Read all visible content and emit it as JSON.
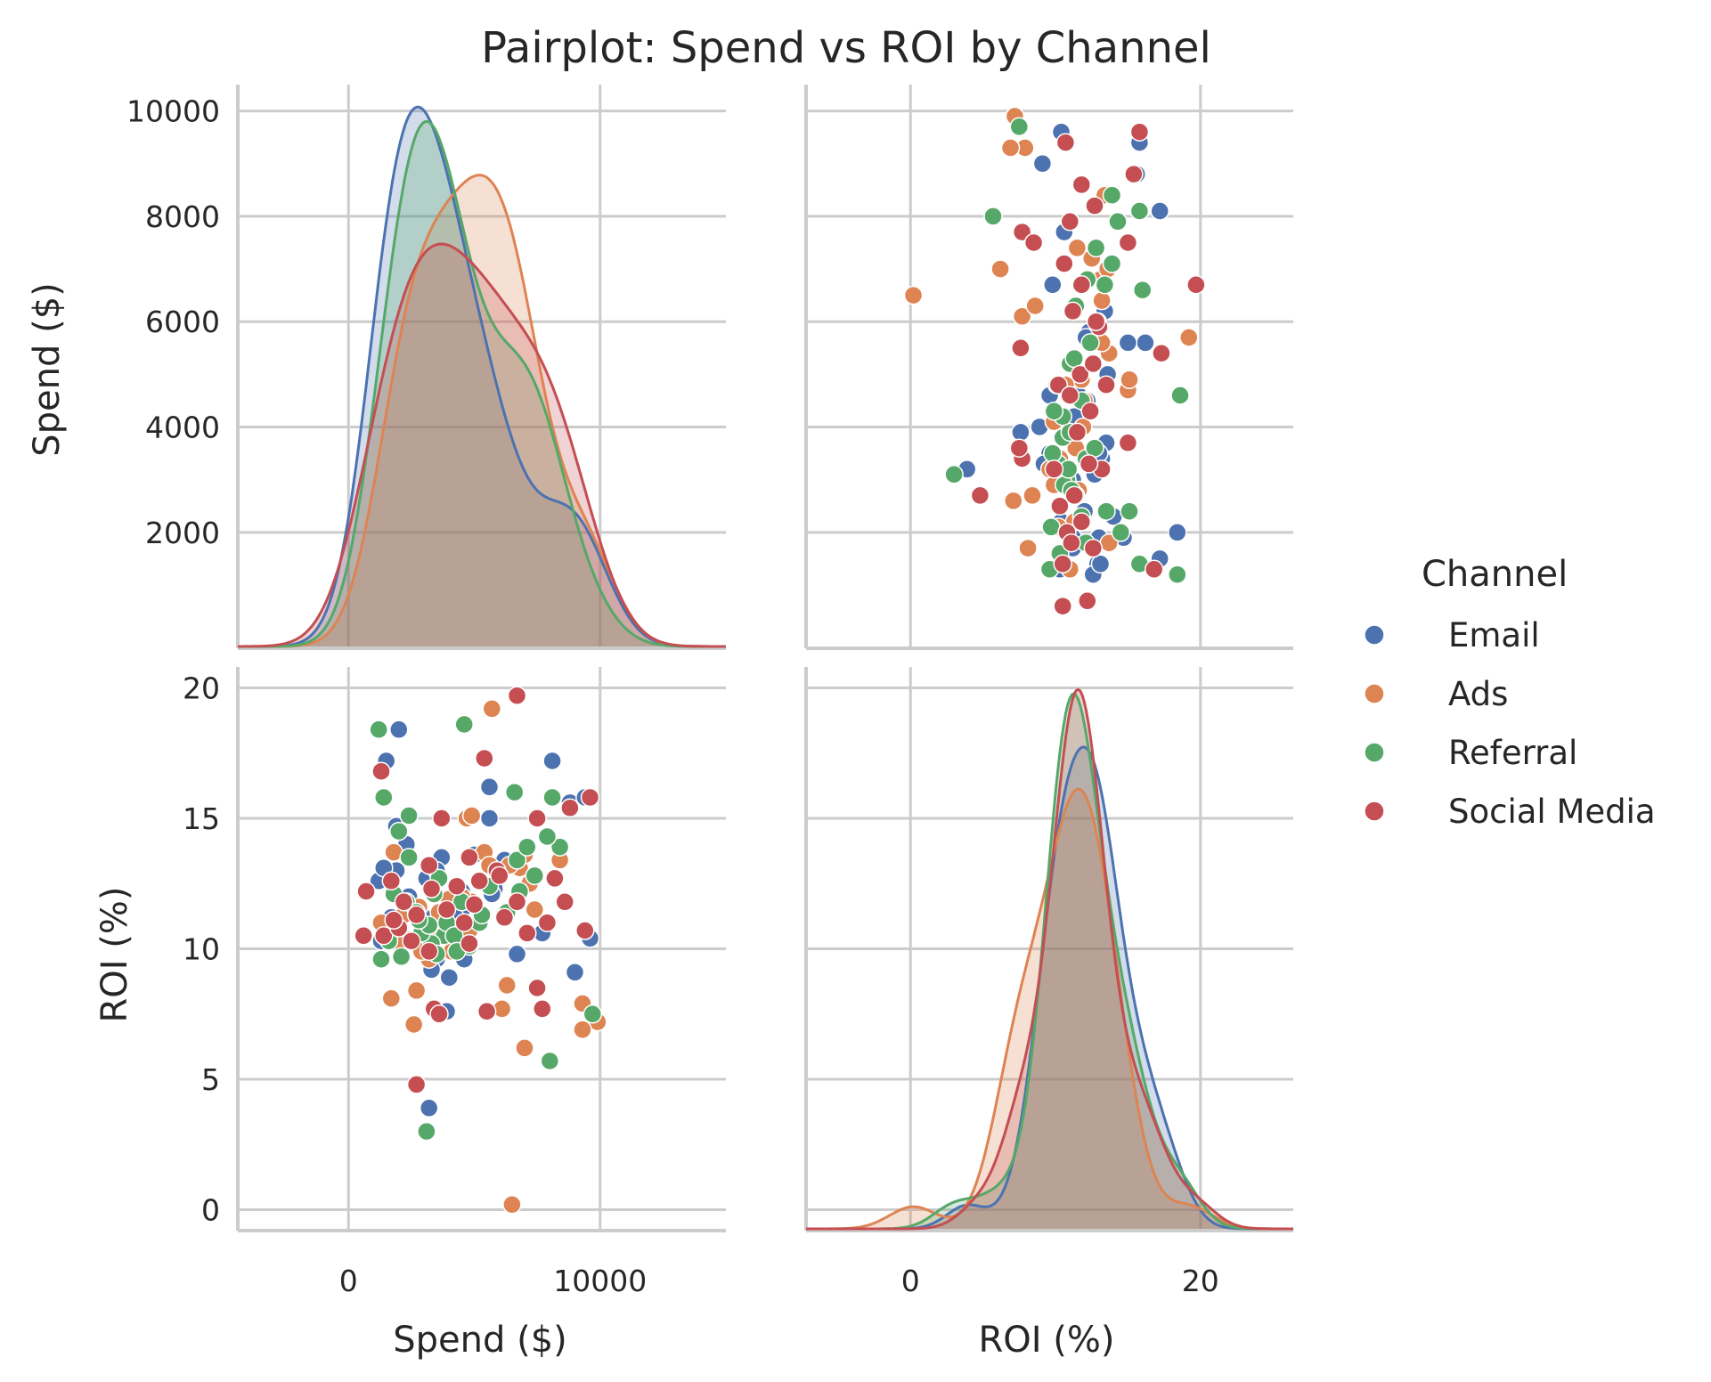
{
  "chart_data": {
    "type": "scatter",
    "kind": "pairplot",
    "title": "Pairplot: Spend vs ROI by Channel",
    "variables": [
      "Spend ($)",
      "ROI (%)"
    ],
    "diagonal": "kde",
    "grid": true,
    "legend": {
      "title": "Channel",
      "placement": "center-right"
    },
    "axes": {
      "spend": {
        "label": "Spend ($)",
        "range": [
          -4400,
          15000
        ],
        "ticks_x": [
          0,
          10000
        ],
        "ticks_y": [
          2000,
          4000,
          6000,
          8000,
          10000
        ]
      },
      "roi": {
        "label": "ROI (%)",
        "range": [
          -7.2,
          26.4
        ],
        "y_range": [
          -0.8,
          20.8
        ],
        "ticks_x": [
          0,
          20
        ],
        "ticks_y": [
          0,
          5,
          10,
          15,
          20
        ]
      }
    },
    "series": [
      {
        "name": "Email",
        "color": "#4c72b0",
        "points": [
          [
            9600,
            10.4
          ],
          [
            8800,
            15.6
          ],
          [
            8100,
            17.2
          ],
          [
            9000,
            9.1
          ],
          [
            6700,
            9.8
          ],
          [
            3400,
            13.2
          ],
          [
            3200,
            3.9
          ],
          [
            5800,
            12.3
          ],
          [
            5600,
            16.2
          ],
          [
            4600,
            11.6
          ],
          [
            3100,
            10.8
          ],
          [
            4600,
            9.6
          ],
          [
            3700,
            13.5
          ],
          [
            3500,
            9.6
          ],
          [
            4200,
            11.3
          ],
          [
            4000,
            8.9
          ],
          [
            6200,
            13.4
          ],
          [
            2000,
            14.5
          ],
          [
            1400,
            12.9
          ],
          [
            1900,
            11.2
          ],
          [
            1300,
            10.3
          ],
          [
            2400,
            12.0
          ],
          [
            7700,
            10.6
          ],
          [
            3100,
            12.7
          ],
          [
            3000,
            11.2
          ],
          [
            3900,
            7.6
          ],
          [
            4500,
            12.2
          ],
          [
            3300,
            9.2
          ],
          [
            5000,
            13.6
          ],
          [
            2200,
            10.4
          ],
          [
            1900,
            13.0
          ],
          [
            1700,
            11.2
          ],
          [
            9400,
            15.8
          ],
          [
            2000,
            18.4
          ],
          [
            1200,
            12.6
          ],
          [
            1400,
            13.1
          ],
          [
            5600,
            15.0
          ],
          [
            5700,
            12.1
          ],
          [
            3500,
            13.0
          ],
          [
            2300,
            14.0
          ],
          [
            1500,
            17.2
          ],
          [
            1900,
            14.7
          ],
          [
            2200,
            10.4
          ]
        ]
      },
      {
        "name": "Ads",
        "color": "#dd8452",
        "points": [
          [
            6500,
            0.2
          ],
          [
            7000,
            6.2
          ],
          [
            9300,
            7.9
          ],
          [
            9900,
            7.2
          ],
          [
            9300,
            6.9
          ],
          [
            8400,
            13.4
          ],
          [
            7400,
            11.5
          ],
          [
            7200,
            12.5
          ],
          [
            6800,
            13.1
          ],
          [
            5400,
            13.7
          ],
          [
            4700,
            15.0
          ],
          [
            4900,
            15.1
          ],
          [
            6100,
            7.7
          ],
          [
            5200,
            11.0
          ],
          [
            4100,
            9.9
          ],
          [
            3400,
            10.3
          ],
          [
            2700,
            8.4
          ],
          [
            2600,
            7.1
          ],
          [
            1700,
            8.1
          ],
          [
            1300,
            11.0
          ],
          [
            2200,
            11.3
          ],
          [
            2800,
            11.6
          ],
          [
            1800,
            13.7
          ],
          [
            4900,
            11.8
          ],
          [
            4800,
            10.7
          ],
          [
            5700,
            19.2
          ],
          [
            6000,
            12.9
          ],
          [
            6400,
            13.2
          ],
          [
            7000,
            13.6
          ],
          [
            2100,
            10.2
          ],
          [
            3200,
            9.6
          ],
          [
            3900,
            10.9
          ],
          [
            4500,
            12.0
          ],
          [
            3600,
            11.4
          ],
          [
            5600,
            13.2
          ],
          [
            2900,
            9.9
          ],
          [
            6300,
            8.6
          ],
          [
            4000,
            11.9
          ]
        ]
      },
      {
        "name": "Referral",
        "color": "#55a868",
        "points": [
          [
            1200,
            18.4
          ],
          [
            4600,
            18.6
          ],
          [
            6600,
            16.0
          ],
          [
            8100,
            15.8
          ],
          [
            8400,
            13.9
          ],
          [
            7900,
            14.3
          ],
          [
            6700,
            13.4
          ],
          [
            7400,
            12.8
          ],
          [
            2400,
            15.1
          ],
          [
            2000,
            14.5
          ],
          [
            1400,
            15.8
          ],
          [
            3400,
            12.1
          ],
          [
            3000,
            10.8
          ],
          [
            3800,
            10.5
          ],
          [
            3300,
            10.2
          ],
          [
            3900,
            11.0
          ],
          [
            4500,
            11.8
          ],
          [
            2100,
            9.7
          ],
          [
            1300,
            9.6
          ],
          [
            1600,
            10.3
          ],
          [
            2900,
            10.6
          ],
          [
            5200,
            11.0
          ],
          [
            9700,
            7.5
          ],
          [
            8000,
            5.7
          ],
          [
            3100,
            3.0
          ],
          [
            7100,
            13.9
          ],
          [
            6200,
            11.3
          ],
          [
            4200,
            10.5
          ],
          [
            2300,
            11.8
          ],
          [
            3500,
            9.8
          ],
          [
            6800,
            12.2
          ],
          [
            2700,
            11.4
          ],
          [
            1800,
            12.1
          ],
          [
            4800,
            10.1
          ],
          [
            5300,
            11.3
          ],
          [
            5600,
            12.4
          ],
          [
            4300,
            9.9
          ],
          [
            2400,
            13.5
          ],
          [
            3600,
            12.7
          ],
          [
            3200,
            10.9
          ],
          [
            2800,
            11.1
          ],
          [
            6300,
            11.4
          ]
        ]
      },
      {
        "name": "Social Media",
        "color": "#c44e52",
        "points": [
          [
            6700,
            19.7
          ],
          [
            5400,
            17.3
          ],
          [
            1300,
            16.8
          ],
          [
            9600,
            15.8
          ],
          [
            8800,
            15.4
          ],
          [
            7500,
            15.0
          ],
          [
            3700,
            15.0
          ],
          [
            5900,
            13.0
          ],
          [
            4800,
            13.5
          ],
          [
            3200,
            13.2
          ],
          [
            1700,
            12.6
          ],
          [
            700,
            12.2
          ],
          [
            2200,
            11.8
          ],
          [
            5000,
            11.7
          ],
          [
            6200,
            11.2
          ],
          [
            7900,
            11.0
          ],
          [
            8600,
            11.8
          ],
          [
            9400,
            10.7
          ],
          [
            4800,
            10.2
          ],
          [
            3200,
            9.9
          ],
          [
            600,
            10.5
          ],
          [
            3400,
            7.7
          ],
          [
            3600,
            7.5
          ],
          [
            5500,
            7.6
          ],
          [
            7700,
            7.7
          ],
          [
            7500,
            8.5
          ],
          [
            2700,
            4.8
          ],
          [
            1400,
            10.5
          ],
          [
            2700,
            11.3
          ],
          [
            6000,
            12.8
          ],
          [
            4300,
            12.4
          ],
          [
            2000,
            10.8
          ],
          [
            3900,
            11.5
          ],
          [
            7100,
            10.6
          ],
          [
            5200,
            12.6
          ],
          [
            3300,
            12.3
          ],
          [
            6700,
            11.8
          ],
          [
            4600,
            11.0
          ],
          [
            2500,
            10.3
          ],
          [
            8200,
            12.7
          ],
          [
            1800,
            11.1
          ]
        ]
      }
    ]
  }
}
